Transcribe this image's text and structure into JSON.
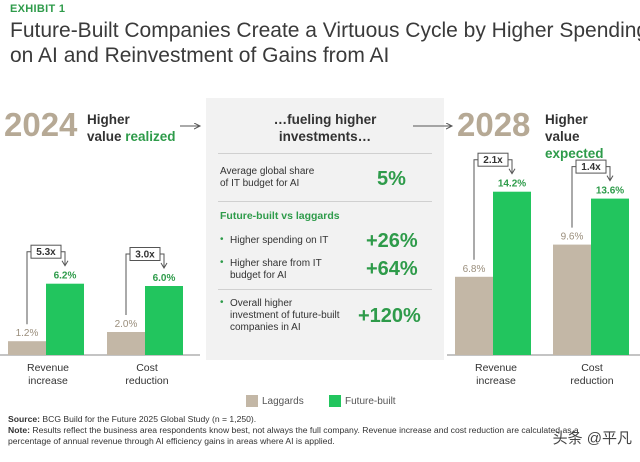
{
  "exhibit": "EXHIBIT 1",
  "title_lines": [
    "Future-Built Companies Create a Virtuous Cycle by Higher Spending",
    "on AI and Reinvestment of Gains from AI"
  ],
  "left_panel": {
    "year": "2024",
    "desc_line1": "Higher",
    "desc_line2a": "value ",
    "desc_line2b": "realized"
  },
  "middle_panel": {
    "head_line1": "…fueling higher",
    "head_line2": "investments…",
    "avg_share_line1": "Average global share",
    "avg_share_line2": "of IT budget for AI",
    "avg_share_value": "5%",
    "section_title": "Future-built vs laggards",
    "items": [
      {
        "lines": [
          "Higher spending on IT"
        ],
        "value": "+26%"
      },
      {
        "lines": [
          "Higher share from IT",
          "budget for AI"
        ],
        "value": "+64%"
      },
      {
        "lines": [
          "Overall higher",
          "investment of future-built",
          "companies in AI"
        ],
        "value": "+120%"
      }
    ]
  },
  "right_panel": {
    "year": "2028",
    "desc_line1": "Higher",
    "desc_line2a": "value ",
    "desc_line2b": "expected"
  },
  "colors": {
    "laggards": "#c3b7a6",
    "future_built": "#22c55e",
    "accent_text": "#2e9b4a",
    "year": "#b6a995"
  },
  "chart_data": [
    {
      "type": "bar",
      "year": "2024",
      "categories": [
        "Revenue increase",
        "Cost reduction"
      ],
      "category_lines": [
        [
          "Revenue",
          "increase"
        ],
        [
          "Cost",
          "reduction"
        ]
      ],
      "series": [
        {
          "name": "Laggards",
          "values": [
            1.2,
            2.0
          ],
          "labels": [
            "1.2%",
            "2.0%"
          ]
        },
        {
          "name": "Future-built",
          "values": [
            6.2,
            6.0
          ],
          "labels": [
            "6.2%",
            "6.0%"
          ]
        }
      ],
      "multipliers": [
        "5.3x",
        "3.0x"
      ],
      "ylim": [
        0,
        15
      ]
    },
    {
      "type": "bar",
      "year": "2028",
      "categories": [
        "Revenue increase",
        "Cost reduction"
      ],
      "category_lines": [
        [
          "Revenue",
          "increase"
        ],
        [
          "Cost",
          "reduction"
        ]
      ],
      "series": [
        {
          "name": "Laggards",
          "values": [
            6.8,
            9.6
          ],
          "labels": [
            "6.8%",
            "9.6%"
          ]
        },
        {
          "name": "Future-built",
          "values": [
            14.2,
            13.6
          ],
          "labels": [
            "14.2%",
            "13.6%"
          ]
        }
      ],
      "multipliers": [
        "2.1x",
        "1.4x"
      ],
      "ylim": [
        0,
        15
      ]
    }
  ],
  "legend": {
    "laggards": "Laggards",
    "future_built": "Future-built"
  },
  "footer": {
    "source_label": "Source:",
    "source_text": " BCG Build for the Future 2025 Global Study (n = 1,250).",
    "note_label": "Note:",
    "note_text": " Results reflect the business area respondents know best, not always the full company. Revenue increase and cost reduction are calculated as a",
    "note_line2": "percentage of annual revenue through AI efficiency gains in areas where AI is applied."
  },
  "watermark": "头条 @平凡"
}
